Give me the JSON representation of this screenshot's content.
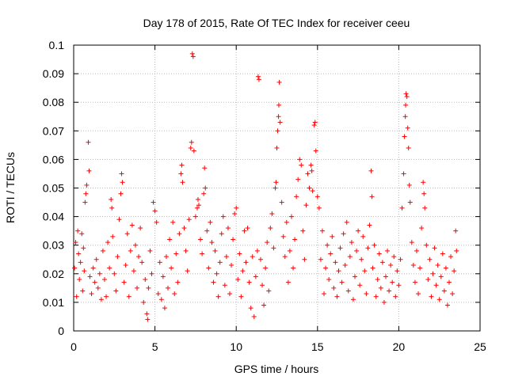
{
  "chart_data": {
    "type": "scatter",
    "title": "Day 178 of 2015, Rate Of TEC Index for receiver ceeu",
    "xlabel": "GPS time / hours",
    "ylabel": "ROTI / TECUs",
    "xlim": [
      0,
      25
    ],
    "ylim": [
      0,
      0.1
    ],
    "xticks": [
      0,
      5,
      10,
      15,
      20,
      25
    ],
    "yticks": [
      0,
      0.01,
      0.02,
      0.03,
      0.04,
      0.05,
      0.06,
      0.07,
      0.08,
      0.09,
      0.1
    ],
    "xtick_labels": [
      "0",
      "5",
      "10",
      "15",
      "20",
      "25"
    ],
    "ytick_labels": [
      "0",
      "0.01",
      "0.02",
      "0.03",
      "0.04",
      "0.05",
      "0.06",
      "0.07",
      "0.08",
      "0.09",
      "0.1"
    ],
    "grid": true,
    "marker": "+",
    "color": "#ff0000",
    "series": [
      {
        "points": [
          [
            0.05,
            0.022
          ],
          [
            0.12,
            0.031
          ],
          [
            0.18,
            0.012
          ],
          [
            0.25,
            0.035
          ],
          [
            0.3,
            0.027
          ],
          [
            0.35,
            0.018
          ],
          [
            0.42,
            0.024
          ],
          [
            0.5,
            0.034
          ],
          [
            0.55,
            0.014
          ],
          [
            0.6,
            0.029
          ],
          [
            0.65,
            0.021
          ],
          [
            0.7,
            0.045
          ],
          [
            0.75,
            0.048
          ],
          [
            0.8,
            0.051
          ],
          [
            0.9,
            0.066
          ],
          [
            0.95,
            0.056
          ],
          [
            1.0,
            0.019
          ],
          [
            1.1,
            0.013
          ],
          [
            1.2,
            0.022
          ],
          [
            1.3,
            0.017
          ],
          [
            1.4,
            0.025
          ],
          [
            1.5,
            0.015
          ],
          [
            1.6,
            0.02
          ],
          [
            1.7,
            0.011
          ],
          [
            1.8,
            0.028
          ],
          [
            1.9,
            0.018
          ],
          [
            2.0,
            0.012
          ],
          [
            2.1,
            0.031
          ],
          [
            2.2,
            0.022
          ],
          [
            2.3,
            0.046
          ],
          [
            2.35,
            0.043
          ],
          [
            2.4,
            0.033
          ],
          [
            2.5,
            0.02
          ],
          [
            2.6,
            0.014
          ],
          [
            2.7,
            0.026
          ],
          [
            2.8,
            0.039
          ],
          [
            2.9,
            0.048
          ],
          [
            2.95,
            0.055
          ],
          [
            3.0,
            0.052
          ],
          [
            3.1,
            0.017
          ],
          [
            3.2,
            0.023
          ],
          [
            3.3,
            0.034
          ],
          [
            3.4,
            0.012
          ],
          [
            3.5,
            0.028
          ],
          [
            3.6,
            0.037
          ],
          [
            3.7,
            0.021
          ],
          [
            3.8,
            0.03
          ],
          [
            3.9,
            0.015
          ],
          [
            4.0,
            0.026
          ],
          [
            4.1,
            0.036
          ],
          [
            4.2,
            0.024
          ],
          [
            4.3,
            0.01
          ],
          [
            4.4,
            0.018
          ],
          [
            4.5,
            0.006
          ],
          [
            4.55,
            0.004
          ],
          [
            4.6,
            0.015
          ],
          [
            4.7,
            0.028
          ],
          [
            4.8,
            0.02
          ],
          [
            4.9,
            0.045
          ],
          [
            5.0,
            0.042
          ],
          [
            5.1,
            0.038
          ],
          [
            5.2,
            0.013
          ],
          [
            5.3,
            0.024
          ],
          [
            5.4,
            0.011
          ],
          [
            5.5,
            0.019
          ],
          [
            5.6,
            0.008
          ],
          [
            5.7,
            0.026
          ],
          [
            5.8,
            0.015
          ],
          [
            5.9,
            0.032
          ],
          [
            6.0,
            0.022
          ],
          [
            6.1,
            0.038
          ],
          [
            6.2,
            0.013
          ],
          [
            6.3,
            0.027
          ],
          [
            6.4,
            0.017
          ],
          [
            6.5,
            0.034
          ],
          [
            6.6,
            0.055
          ],
          [
            6.65,
            0.058
          ],
          [
            6.7,
            0.052
          ],
          [
            6.8,
            0.036
          ],
          [
            6.9,
            0.028
          ],
          [
            7.0,
            0.021
          ],
          [
            7.1,
            0.039
          ],
          [
            7.2,
            0.064
          ],
          [
            7.25,
            0.066
          ],
          [
            7.3,
            0.097
          ],
          [
            7.35,
            0.096
          ],
          [
            7.4,
            0.063
          ],
          [
            7.5,
            0.04
          ],
          [
            7.6,
            0.043
          ],
          [
            7.65,
            0.046
          ],
          [
            7.7,
            0.044
          ],
          [
            7.8,
            0.032
          ],
          [
            7.9,
            0.027
          ],
          [
            8.0,
            0.048
          ],
          [
            8.05,
            0.057
          ],
          [
            8.1,
            0.05
          ],
          [
            8.2,
            0.035
          ],
          [
            8.3,
            0.022
          ],
          [
            8.4,
            0.038
          ],
          [
            8.5,
            0.031
          ],
          [
            8.6,
            0.017
          ],
          [
            8.7,
            0.028
          ],
          [
            8.8,
            0.02
          ],
          [
            8.9,
            0.012
          ],
          [
            9.0,
            0.024
          ],
          [
            9.1,
            0.034
          ],
          [
            9.2,
            0.04
          ],
          [
            9.3,
            0.016
          ],
          [
            9.4,
            0.026
          ],
          [
            9.5,
            0.036
          ],
          [
            9.6,
            0.013
          ],
          [
            9.7,
            0.023
          ],
          [
            9.8,
            0.032
          ],
          [
            9.9,
            0.041
          ],
          [
            10.0,
            0.043
          ],
          [
            10.1,
            0.018
          ],
          [
            10.2,
            0.027
          ],
          [
            10.3,
            0.012
          ],
          [
            10.4,
            0.021
          ],
          [
            10.5,
            0.035
          ],
          [
            10.6,
            0.024
          ],
          [
            10.7,
            0.036
          ],
          [
            10.8,
            0.017
          ],
          [
            10.9,
            0.008
          ],
          [
            11.0,
            0.026
          ],
          [
            11.1,
            0.005
          ],
          [
            11.2,
            0.019
          ],
          [
            11.3,
            0.028
          ],
          [
            11.35,
            0.089
          ],
          [
            11.4,
            0.088
          ],
          [
            11.5,
            0.025
          ],
          [
            11.6,
            0.016
          ],
          [
            11.7,
            0.009
          ],
          [
            11.8,
            0.022
          ],
          [
            11.9,
            0.031
          ],
          [
            12.0,
            0.014
          ],
          [
            12.1,
            0.036
          ],
          [
            12.2,
            0.041
          ],
          [
            12.3,
            0.029
          ],
          [
            12.4,
            0.05
          ],
          [
            12.45,
            0.052
          ],
          [
            12.5,
            0.064
          ],
          [
            12.55,
            0.07
          ],
          [
            12.6,
            0.075
          ],
          [
            12.62,
            0.079
          ],
          [
            12.65,
            0.087
          ],
          [
            12.7,
            0.073
          ],
          [
            12.8,
            0.045
          ],
          [
            12.9,
            0.033
          ],
          [
            13.0,
            0.026
          ],
          [
            13.1,
            0.038
          ],
          [
            13.2,
            0.017
          ],
          [
            13.3,
            0.028
          ],
          [
            13.4,
            0.04
          ],
          [
            13.5,
            0.022
          ],
          [
            13.6,
            0.032
          ],
          [
            13.7,
            0.047
          ],
          [
            13.8,
            0.053
          ],
          [
            13.9,
            0.06
          ],
          [
            14.0,
            0.058
          ],
          [
            14.1,
            0.035
          ],
          [
            14.2,
            0.025
          ],
          [
            14.3,
            0.044
          ],
          [
            14.4,
            0.055
          ],
          [
            14.5,
            0.05
          ],
          [
            14.6,
            0.058
          ],
          [
            14.65,
            0.056
          ],
          [
            14.7,
            0.049
          ],
          [
            14.8,
            0.072
          ],
          [
            14.85,
            0.073
          ],
          [
            14.9,
            0.063
          ],
          [
            15.0,
            0.047
          ],
          [
            15.1,
            0.043
          ],
          [
            15.2,
            0.025
          ],
          [
            15.3,
            0.035
          ],
          [
            15.4,
            0.013
          ],
          [
            15.5,
            0.022
          ],
          [
            15.6,
            0.03
          ],
          [
            15.7,
            0.018
          ],
          [
            15.8,
            0.027
          ],
          [
            15.9,
            0.033
          ],
          [
            16.0,
            0.015
          ],
          [
            16.1,
            0.024
          ],
          [
            16.2,
            0.012
          ],
          [
            16.3,
            0.021
          ],
          [
            16.4,
            0.029
          ],
          [
            16.5,
            0.017
          ],
          [
            16.6,
            0.034
          ],
          [
            16.7,
            0.023
          ],
          [
            16.8,
            0.038
          ],
          [
            16.9,
            0.014
          ],
          [
            17.0,
            0.026
          ],
          [
            17.1,
            0.031
          ],
          [
            17.2,
            0.011
          ],
          [
            17.3,
            0.019
          ],
          [
            17.4,
            0.028
          ],
          [
            17.5,
            0.035
          ],
          [
            17.6,
            0.016
          ],
          [
            17.7,
            0.025
          ],
          [
            17.8,
            0.033
          ],
          [
            17.9,
            0.021
          ],
          [
            18.0,
            0.013
          ],
          [
            18.1,
            0.029
          ],
          [
            18.2,
            0.037
          ],
          [
            18.3,
            0.056
          ],
          [
            18.35,
            0.047
          ],
          [
            18.4,
            0.022
          ],
          [
            18.5,
            0.03
          ],
          [
            18.6,
            0.012
          ],
          [
            18.7,
            0.018
          ],
          [
            18.8,
            0.027
          ],
          [
            18.9,
            0.015
          ],
          [
            19.0,
            0.024
          ],
          [
            19.1,
            0.01
          ],
          [
            19.2,
            0.019
          ],
          [
            19.3,
            0.028
          ],
          [
            19.4,
            0.014
          ],
          [
            19.5,
            0.023
          ],
          [
            19.6,
            0.017
          ],
          [
            19.7,
            0.026
          ],
          [
            19.8,
            0.012
          ],
          [
            19.9,
            0.021
          ],
          [
            20.0,
            0.016
          ],
          [
            20.1,
            0.025
          ],
          [
            20.2,
            0.043
          ],
          [
            20.3,
            0.055
          ],
          [
            20.35,
            0.068
          ],
          [
            20.4,
            0.075
          ],
          [
            20.42,
            0.079
          ],
          [
            20.45,
            0.083
          ],
          [
            20.5,
            0.082
          ],
          [
            20.55,
            0.071
          ],
          [
            20.6,
            0.064
          ],
          [
            20.65,
            0.051
          ],
          [
            20.7,
            0.045
          ],
          [
            20.8,
            0.031
          ],
          [
            20.9,
            0.023
          ],
          [
            21.0,
            0.017
          ],
          [
            21.1,
            0.028
          ],
          [
            21.2,
            0.013
          ],
          [
            21.3,
            0.022
          ],
          [
            21.4,
            0.036
          ],
          [
            21.5,
            0.052
          ],
          [
            21.55,
            0.048
          ],
          [
            21.6,
            0.043
          ],
          [
            21.7,
            0.03
          ],
          [
            21.8,
            0.018
          ],
          [
            21.9,
            0.025
          ],
          [
            22.0,
            0.012
          ],
          [
            22.1,
            0.02
          ],
          [
            22.2,
            0.029
          ],
          [
            22.3,
            0.016
          ],
          [
            22.4,
            0.023
          ],
          [
            22.5,
            0.011
          ],
          [
            22.6,
            0.019
          ],
          [
            22.7,
            0.027
          ],
          [
            22.8,
            0.014
          ],
          [
            22.9,
            0.022
          ],
          [
            23.0,
            0.009
          ],
          [
            23.1,
            0.017
          ],
          [
            23.2,
            0.026
          ],
          [
            23.3,
            0.013
          ],
          [
            23.4,
            0.021
          ],
          [
            23.5,
            0.035
          ],
          [
            23.55,
            0.028
          ]
        ]
      }
    ]
  }
}
